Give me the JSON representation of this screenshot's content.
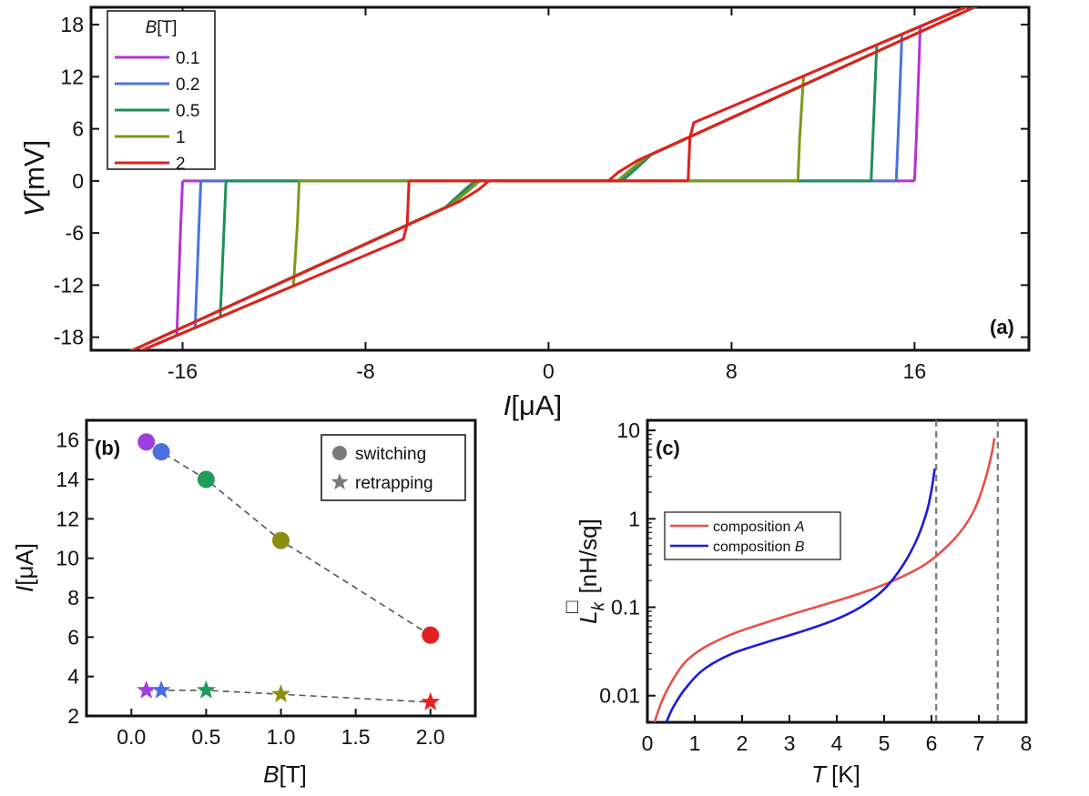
{
  "chart_data": [
    {
      "panel": "(a)",
      "type": "line",
      "xlabel_var": "I",
      "xlabel_unit": "[μA]",
      "ylabel_var": "V",
      "ylabel_unit": "[mV]",
      "xlim": [
        -20,
        21
      ],
      "ylim": [
        -19.5,
        20
      ],
      "x_ticks": [
        -16,
        -8,
        0,
        8,
        16
      ],
      "y_ticks": [
        -18,
        -12,
        -6,
        0,
        6,
        12,
        18
      ],
      "y_tick_labels": [
        "-18",
        "-12",
        "-6",
        "0",
        "6",
        "12",
        "18"
      ],
      "legend": {
        "title_var": "B",
        "title_unit": "[T]",
        "position": "top-left"
      },
      "slope_mV_per_uA": 1.12,
      "series": [
        {
          "name": "0.1",
          "color": "#b533d6",
          "switching": 16.0,
          "retrapping": 3.2
        },
        {
          "name": "0.2",
          "color": "#4a74d9",
          "switching": 15.2,
          "retrapping": 3.3
        },
        {
          "name": "0.5",
          "color": "#1f8f5a",
          "switching": 14.1,
          "retrapping": 3.3
        },
        {
          "name": "1",
          "color": "#7a9a1a",
          "switching": 10.9,
          "retrapping": 3.1
        },
        {
          "name": "2",
          "color": "#e0201e",
          "switching": 6.1,
          "retrapping": 2.7
        }
      ]
    },
    {
      "panel": "(b)",
      "type": "scatter",
      "xlabel_var": "B",
      "xlabel_unit": "[T]",
      "ylabel_var": "I",
      "ylabel_unit": "[μA]",
      "xlim": [
        -0.3,
        2.3
      ],
      "ylim": [
        2,
        17
      ],
      "x_ticks": [
        "0.0",
        "0.5",
        "1.0",
        "1.5",
        "2.0"
      ],
      "y_ticks": [
        "2",
        "4",
        "6",
        "8",
        "10",
        "12",
        "14",
        "16"
      ],
      "legend": [
        "switching",
        "retrapping"
      ],
      "legend_position": "top-right",
      "colors": [
        "#9b3fe0",
        "#4a6fe0",
        "#1f9b5a",
        "#8b8f10",
        "#e22020"
      ],
      "x": [
        0.1,
        0.2,
        0.5,
        1.0,
        2.0
      ],
      "series": [
        {
          "name": "switching",
          "marker": "circle",
          "values": [
            15.9,
            15.4,
            14.0,
            10.9,
            6.1
          ]
        },
        {
          "name": "retrapping",
          "marker": "star",
          "values": [
            3.3,
            3.3,
            3.3,
            3.1,
            2.7
          ]
        }
      ]
    },
    {
      "panel": "(c)",
      "type": "line",
      "xlabel_var": "T",
      "xlabel_unit": "[K]",
      "ylabel_var": "L",
      "ylabel_sub": "k",
      "ylabel_sup": "□",
      "ylabel_unit": "[nH/sq]",
      "yscale": "log",
      "xlim": [
        0,
        8
      ],
      "ylim": [
        0.005,
        13
      ],
      "x_ticks": [
        "0",
        "1",
        "2",
        "3",
        "4",
        "5",
        "6",
        "7",
        "8"
      ],
      "y_ticks": [
        0.01,
        0.1,
        1,
        10
      ],
      "y_tick_labels": [
        "0.01",
        "0.1",
        "1",
        "10"
      ],
      "vlines": [
        6.1,
        7.4
      ],
      "legend_position": "center-left",
      "series": [
        {
          "name_text": "composition ",
          "name_var": "A",
          "color": "#e8504a",
          "x": [
            0.15,
            0.3,
            0.5,
            0.8,
            1.2,
            1.8,
            2.5,
            3.2,
            4.0,
            4.6,
            5.2,
            5.8,
            6.2,
            6.6,
            6.9,
            7.1,
            7.25,
            7.33
          ],
          "y": [
            0.005,
            0.0085,
            0.014,
            0.024,
            0.035,
            0.05,
            0.067,
            0.088,
            0.118,
            0.15,
            0.2,
            0.29,
            0.42,
            0.7,
            1.25,
            2.4,
            4.8,
            8.2
          ]
        },
        {
          "name_text": "composition ",
          "name_var": "B",
          "color": "#1a1adf",
          "x": [
            0.4,
            0.55,
            0.8,
            1.2,
            1.8,
            2.5,
            3.2,
            3.9,
            4.5,
            5.0,
            5.4,
            5.7,
            5.9,
            6.0,
            6.07
          ],
          "y": [
            0.005,
            0.0075,
            0.012,
            0.02,
            0.03,
            0.04,
            0.052,
            0.07,
            0.1,
            0.16,
            0.3,
            0.6,
            1.2,
            2.1,
            3.7
          ]
        }
      ]
    }
  ]
}
